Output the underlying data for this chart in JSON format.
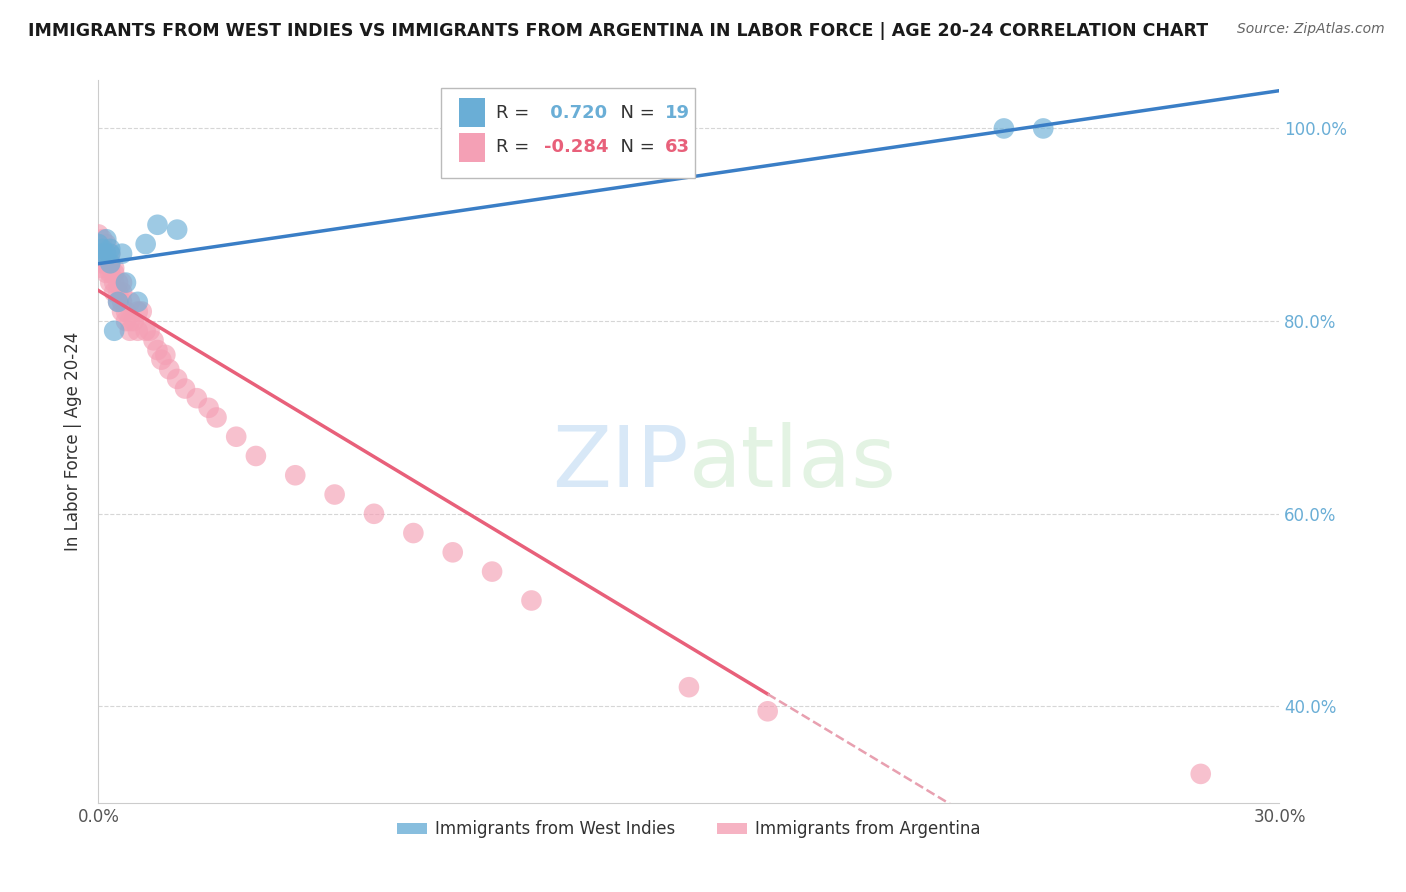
{
  "title": "IMMIGRANTS FROM WEST INDIES VS IMMIGRANTS FROM ARGENTINA IN LABOR FORCE | AGE 20-24 CORRELATION CHART",
  "source": "Source: ZipAtlas.com",
  "ylabel": "In Labor Force | Age 20-24",
  "xlim": [
    0.0,
    0.3
  ],
  "ylim": [
    0.3,
    1.05
  ],
  "blue_R": 0.72,
  "blue_N": 19,
  "pink_R": -0.284,
  "pink_N": 63,
  "blue_color": "#6AAED6",
  "pink_color": "#F4A0B5",
  "blue_line_color": "#3A7EC6",
  "pink_line_color": "#E8607A",
  "dashed_line_color": "#E8A0B0",
  "watermark_zip": "ZIP",
  "watermark_atlas": "atlas",
  "legend_label_blue": "Immigrants from West Indies",
  "legend_label_pink": "Immigrants from Argentina",
  "blue_points_x": [
    0.0,
    0.0,
    0.001,
    0.001,
    0.002,
    0.002,
    0.003,
    0.003,
    0.003,
    0.004,
    0.005,
    0.006,
    0.007,
    0.01,
    0.012,
    0.015,
    0.02,
    0.23,
    0.24
  ],
  "blue_points_y": [
    0.87,
    0.88,
    0.87,
    0.875,
    0.87,
    0.885,
    0.86,
    0.87,
    0.875,
    0.79,
    0.82,
    0.87,
    0.84,
    0.82,
    0.88,
    0.9,
    0.895,
    1.0,
    1.0
  ],
  "pink_points_x": [
    0.0,
    0.0,
    0.0,
    0.0,
    0.0,
    0.001,
    0.001,
    0.001,
    0.001,
    0.001,
    0.002,
    0.002,
    0.002,
    0.002,
    0.003,
    0.003,
    0.003,
    0.003,
    0.003,
    0.004,
    0.004,
    0.004,
    0.004,
    0.005,
    0.005,
    0.005,
    0.006,
    0.006,
    0.006,
    0.006,
    0.007,
    0.007,
    0.008,
    0.008,
    0.008,
    0.009,
    0.01,
    0.01,
    0.011,
    0.012,
    0.013,
    0.014,
    0.015,
    0.016,
    0.017,
    0.018,
    0.02,
    0.022,
    0.025,
    0.028,
    0.03,
    0.035,
    0.04,
    0.05,
    0.06,
    0.07,
    0.08,
    0.09,
    0.1,
    0.11,
    0.15,
    0.17,
    0.28
  ],
  "pink_points_y": [
    0.88,
    0.875,
    0.87,
    0.865,
    0.89,
    0.87,
    0.86,
    0.875,
    0.855,
    0.885,
    0.86,
    0.85,
    0.87,
    0.88,
    0.855,
    0.85,
    0.86,
    0.84,
    0.87,
    0.84,
    0.83,
    0.85,
    0.855,
    0.82,
    0.83,
    0.84,
    0.81,
    0.82,
    0.83,
    0.84,
    0.8,
    0.81,
    0.79,
    0.8,
    0.82,
    0.8,
    0.79,
    0.81,
    0.81,
    0.79,
    0.79,
    0.78,
    0.77,
    0.76,
    0.765,
    0.75,
    0.74,
    0.73,
    0.72,
    0.71,
    0.7,
    0.68,
    0.66,
    0.64,
    0.62,
    0.6,
    0.58,
    0.56,
    0.54,
    0.51,
    0.42,
    0.395,
    0.33
  ]
}
